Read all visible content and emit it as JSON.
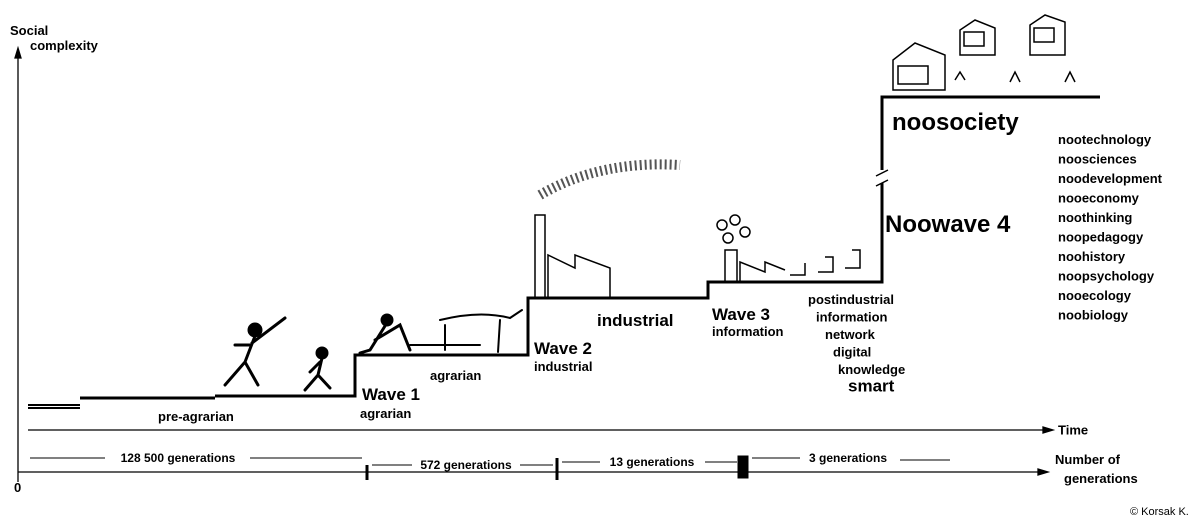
{
  "axes": {
    "y_label": [
      "Social",
      "complexity"
    ],
    "x_label": "Time",
    "generations_label": [
      "Number of",
      "generations"
    ],
    "origin": "0"
  },
  "stages": {
    "pre_agrarian": "pre-agrarian",
    "agrarian": "agrarian",
    "industrial": "industrial",
    "noosociety": "noosociety"
  },
  "waves": [
    {
      "title": "Wave 1",
      "subtitle": [
        "agrarian"
      ]
    },
    {
      "title": "Wave 2",
      "subtitle": [
        "industrial"
      ]
    },
    {
      "title": "Wave 3",
      "subtitle": [
        "information"
      ]
    },
    {
      "title": "Noowave 4",
      "subtitle": []
    }
  ],
  "information_terms": [
    "postindustrial",
    "information",
    "network",
    "digital",
    "knowledge",
    "smart"
  ],
  "generations": [
    "128 500 generations",
    "572 generations",
    "13 generations",
    "3 generations"
  ],
  "noo_fields": [
    "nootechnology",
    "noosciences",
    "noodevelopment",
    "nooeconomy",
    "noothinking",
    "noopedagogy",
    "noohistory",
    "noopsychology",
    "nooecology",
    "noobiology"
  ],
  "copyright": "© Korsak K."
}
